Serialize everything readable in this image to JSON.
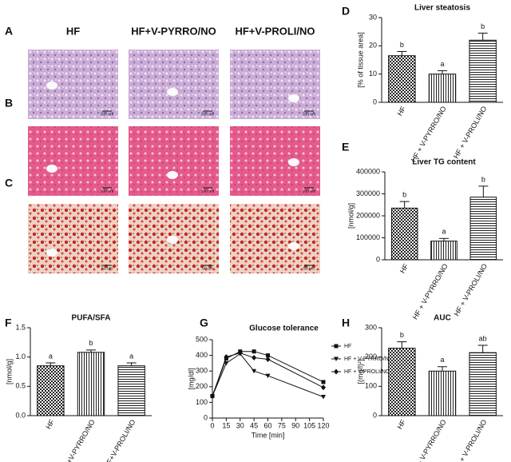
{
  "histology": {
    "panel_labels": [
      "A",
      "B",
      "C"
    ],
    "columns": [
      "HF",
      "HF+V-PYRRO/NO",
      "HF+V-PROLI/NO"
    ],
    "scale_bars": [
      "100 um",
      "100 um",
      "50 um"
    ]
  },
  "chart_data": [
    {
      "type": "bar",
      "panel": "D",
      "title": "Liver steatosis",
      "y_label": "[% of tissue area]",
      "categories": [
        "HF",
        "HF + V-PYRRO/NO",
        "HF + V-PROLI/NO"
      ],
      "values": [
        16.5,
        10,
        22
      ],
      "errors": [
        1.5,
        1.2,
        2.5
      ],
      "letters": [
        "b",
        "a",
        "b"
      ],
      "ylim": [
        0,
        30
      ],
      "yticks": [
        0,
        10,
        20,
        30
      ]
    },
    {
      "type": "bar",
      "panel": "E",
      "title": "Liver TG content",
      "y_label": "[nmol/g]",
      "categories": [
        "HF",
        "HF + V-PYRRO/NO",
        "HF + V-PROLI/NO"
      ],
      "values": [
        235000,
        85000,
        285000
      ],
      "errors": [
        30000,
        12000,
        50000
      ],
      "letters": [
        "b",
        "a",
        "b"
      ],
      "ylim": [
        0,
        400000
      ],
      "yticks": [
        0,
        100000,
        200000,
        300000,
        400000
      ]
    },
    {
      "type": "bar",
      "panel": "F",
      "title": "PUFA/SFA",
      "y_label": "[nmol/g]",
      "categories": [
        "HF",
        "HF+V-PYRRO/NO",
        "HF+V-PROLI/NO"
      ],
      "values": [
        0.85,
        1.08,
        0.85
      ],
      "errors": [
        0.05,
        0.04,
        0.05
      ],
      "letters": [
        "a",
        "b",
        "a"
      ],
      "ylim": [
        0,
        1.5
      ],
      "yticks": [
        {
          "value": 0,
          "label": "0.0"
        },
        {
          "value": 0.5,
          "label": "0.5"
        },
        {
          "value": 1,
          "label": "1.0"
        },
        {
          "value": 1.5,
          "label": "1.5"
        }
      ]
    },
    {
      "type": "line",
      "panel": "G",
      "title": "Glucose tolerance",
      "x_label": "Time [min]",
      "y_label": "[mg/dl]",
      "x": [
        0,
        15,
        30,
        45,
        60,
        120
      ],
      "series": [
        {
          "name": "HF",
          "color": "#111111",
          "marker": "square",
          "values": [
            140,
            380,
            425,
            425,
            400,
            230
          ]
        },
        {
          "name": "HF + V-PYRRO/NO",
          "color": "#111111",
          "marker": "triangle-down",
          "values": [
            140,
            350,
            410,
            300,
            270,
            135
          ]
        },
        {
          "name": "HF + V-PROLI/NO",
          "color": "#111111",
          "marker": "diamond",
          "values": [
            140,
            390,
            415,
            385,
            375,
            195
          ]
        }
      ],
      "xlim": [
        0,
        120
      ],
      "xticks": [
        0,
        15,
        30,
        45,
        60,
        75,
        90,
        105,
        120
      ],
      "ylim": [
        0,
        500
      ],
      "yticks": [
        0,
        100,
        200,
        300,
        400,
        500
      ]
    },
    {
      "type": "bar",
      "panel": "H",
      "title": "AUC",
      "y_label": "[(mg/l)²]",
      "categories": [
        "HF",
        "HF + V-PYRRO/NO",
        "HF + V-PROLI/NO"
      ],
      "values": [
        230,
        152,
        215
      ],
      "errors": [
        22,
        15,
        25
      ],
      "letters": [
        "b",
        "a",
        "ab"
      ],
      "ylim": [
        0,
        300
      ],
      "yticks": [
        0,
        100,
        200,
        300
      ]
    }
  ]
}
